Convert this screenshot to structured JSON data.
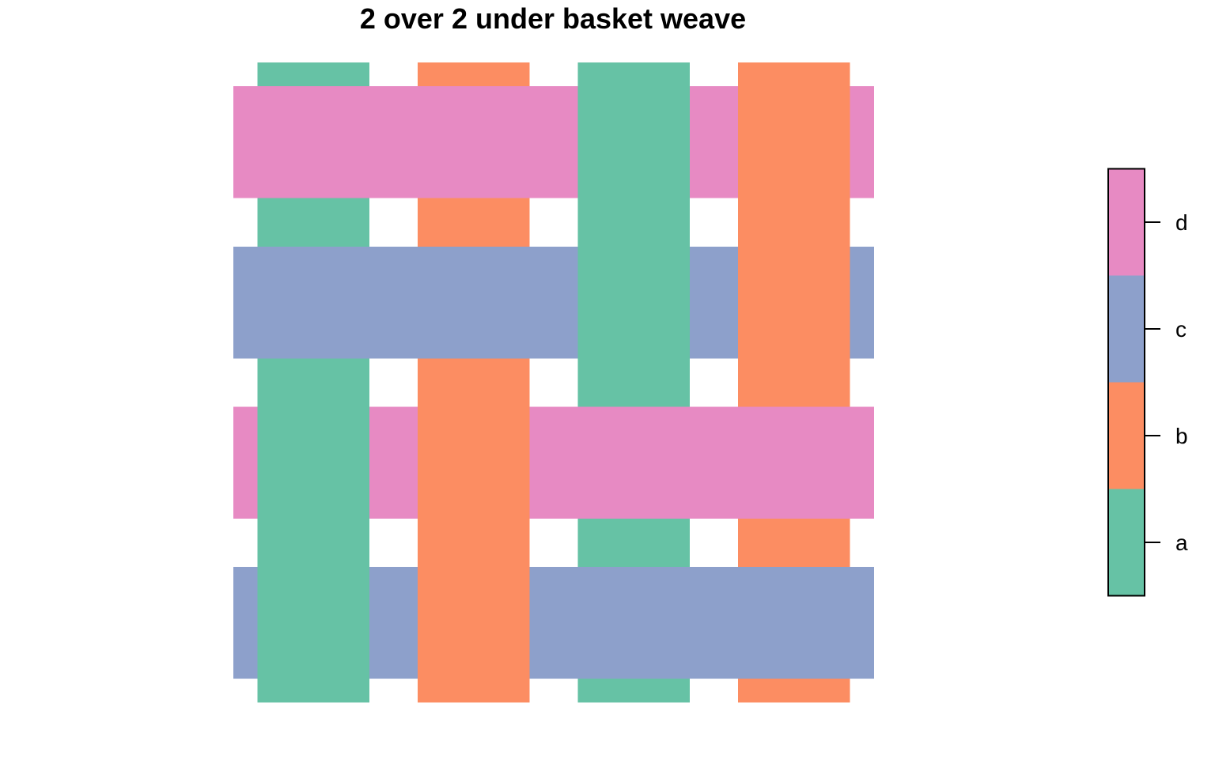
{
  "title": "2 over 2 under basket weave",
  "colors": {
    "a": "#66C2A5",
    "b": "#FC8D62",
    "c": "#8DA0CB",
    "d": "#E78AC3"
  },
  "weave": {
    "warp_colors": [
      "a",
      "b",
      "a",
      "b"
    ],
    "weft_colors": [
      "d",
      "c",
      "d",
      "c"
    ],
    "warp_over_weft": [
      [
        false,
        false,
        true,
        true
      ],
      [
        false,
        false,
        true,
        true
      ],
      [
        true,
        true,
        false,
        false
      ],
      [
        true,
        true,
        false,
        false
      ]
    ]
  },
  "legend": {
    "levels": [
      "a",
      "b",
      "c",
      "d"
    ]
  }
}
